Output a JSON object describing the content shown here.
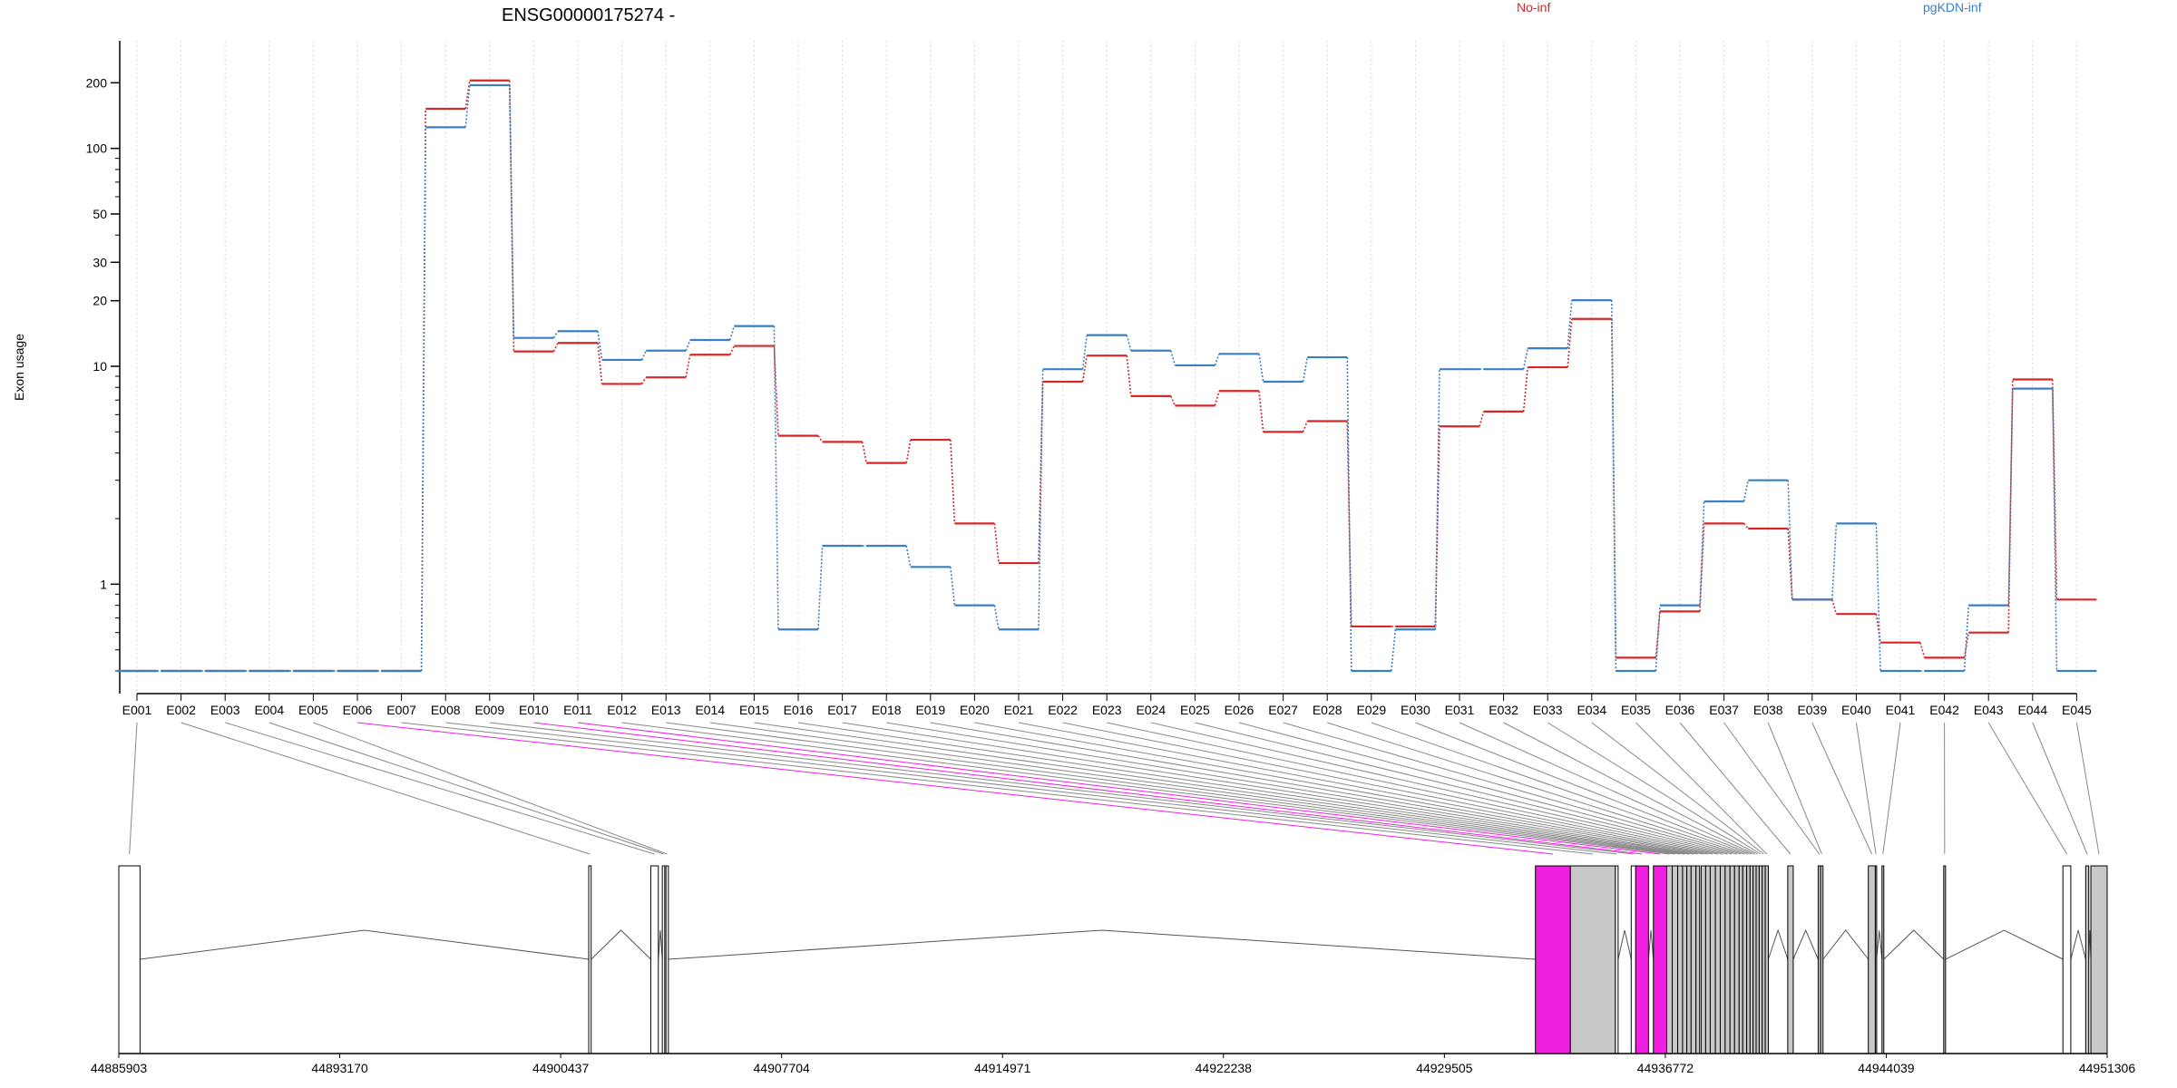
{
  "chart_data": [
    {
      "type": "line",
      "title": "ENSG00000175274 -",
      "ylabel": "Exon usage",
      "yscale": "log",
      "ylim": [
        0.4,
        250
      ],
      "yticks": [
        1,
        10,
        20,
        30,
        50,
        100,
        200
      ],
      "ytick_labels": [
        "1",
        "10",
        "20",
        "30",
        "50",
        "100",
        "200"
      ],
      "grid": "vertical-dotted",
      "legend_placement": "top",
      "categories": [
        "E001",
        "E002",
        "E003",
        "E004",
        "E005",
        "E006",
        "E007",
        "E008",
        "E009",
        "E010",
        "E011",
        "E012",
        "E013",
        "E014",
        "E015",
        "E016",
        "E017",
        "E018",
        "E019",
        "E020",
        "E021",
        "E022",
        "E023",
        "E024",
        "E025",
        "E026",
        "E027",
        "E028",
        "E029",
        "E030",
        "E031",
        "E032",
        "E033",
        "E034",
        "E035",
        "E036",
        "E037",
        "E038",
        "E039",
        "E040",
        "E041",
        "E042",
        "E043",
        "E044",
        "E045"
      ],
      "series": [
        {
          "name": "No-inf",
          "color": "#d62728",
          "values": [
            0.4,
            0.4,
            0.4,
            0.4,
            0.4,
            0.4,
            0.4,
            152,
            205,
            11.7,
            12.8,
            8.3,
            8.9,
            11.3,
            12.4,
            4.8,
            4.5,
            3.6,
            4.6,
            1.9,
            1.25,
            8.5,
            11.2,
            7.3,
            6.6,
            7.7,
            5.0,
            5.6,
            0.64,
            0.64,
            5.3,
            6.2,
            9.9,
            16.5,
            0.46,
            0.75,
            1.9,
            1.8,
            0.85,
            0.73,
            0.54,
            0.46,
            0.6,
            8.7,
            0.85
          ]
        },
        {
          "name": "pgKDN-inf",
          "color": "#3a7fc4",
          "values": [
            0.4,
            0.4,
            0.4,
            0.4,
            0.4,
            0.4,
            0.4,
            125,
            195,
            13.5,
            14.5,
            10.7,
            11.8,
            13.2,
            15.3,
            0.62,
            1.5,
            1.5,
            1.2,
            0.8,
            0.62,
            9.7,
            13.9,
            11.8,
            10.1,
            11.4,
            8.5,
            11.0,
            0.4,
            0.62,
            9.7,
            9.7,
            12.1,
            20.1,
            0.4,
            0.8,
            2.4,
            3.0,
            0.85,
            1.9,
            0.4,
            0.4,
            0.8,
            7.9,
            0.4
          ]
        }
      ]
    },
    {
      "type": "gene-model",
      "x_ticks": [
        "44885903",
        "44893170",
        "44900437",
        "44907704",
        "44914971",
        "44922238",
        "44929505",
        "44936772",
        "44944039",
        "44951306"
      ],
      "x_tick_values": [
        44885903,
        44893170,
        44900437,
        44907704,
        44914971,
        44922238,
        44929505,
        44936772,
        44944039,
        44951306
      ],
      "xlim": [
        44885903,
        44951306
      ],
      "highlight_color": "#f020e0",
      "exon_color": "#c8c8c8",
      "exons": [
        {
          "id": "E001",
          "start": 44885903,
          "end": 44886600,
          "fill": "none"
        },
        {
          "id": "E002",
          "start": 44901360,
          "end": 44901440,
          "fill": "none"
        },
        {
          "id": "E003",
          "start": 44903400,
          "end": 44903650,
          "fill": "none"
        },
        {
          "id": "E004",
          "start": 44903780,
          "end": 44903860,
          "fill": "none"
        },
        {
          "id": "E005",
          "start": 44903900,
          "end": 44903980,
          "fill": "none"
        },
        {
          "id": "E006",
          "start": 44932500,
          "end": 44933650,
          "fill": "highlight"
        },
        {
          "id": "E007",
          "start": 44933650,
          "end": 44935130,
          "fill": "grey"
        },
        {
          "id": "E008",
          "start": 44935130,
          "end": 44935220,
          "fill": "none"
        },
        {
          "id": "E009",
          "start": 44935650,
          "end": 44935800,
          "fill": "none"
        },
        {
          "id": "E010",
          "start": 44935800,
          "end": 44936220,
          "fill": "highlight"
        },
        {
          "id": "E011",
          "start": 44936380,
          "end": 44936820,
          "fill": "highlight"
        },
        {
          "id": "E012",
          "start": 44936820,
          "end": 44937000,
          "fill": "grey"
        },
        {
          "id": "E013",
          "start": 44937000,
          "end": 44937180,
          "fill": "grey"
        },
        {
          "id": "E014",
          "start": 44937180,
          "end": 44937340,
          "fill": "grey"
        },
        {
          "id": "E015",
          "start": 44937340,
          "end": 44937480,
          "fill": "grey"
        },
        {
          "id": "E016",
          "start": 44937480,
          "end": 44937620,
          "fill": "grey"
        },
        {
          "id": "E017",
          "start": 44937620,
          "end": 44937780,
          "fill": "grey"
        },
        {
          "id": "E018",
          "start": 44937780,
          "end": 44937900,
          "fill": "grey"
        },
        {
          "id": "E019",
          "start": 44937950,
          "end": 44938100,
          "fill": "grey"
        },
        {
          "id": "E020",
          "start": 44938100,
          "end": 44938250,
          "fill": "grey"
        },
        {
          "id": "E021",
          "start": 44938250,
          "end": 44938420,
          "fill": "grey"
        },
        {
          "id": "E022",
          "start": 44938420,
          "end": 44938580,
          "fill": "grey"
        },
        {
          "id": "E023",
          "start": 44938580,
          "end": 44938740,
          "fill": "grey"
        },
        {
          "id": "E024",
          "start": 44938740,
          "end": 44938900,
          "fill": "grey"
        },
        {
          "id": "E025",
          "start": 44938900,
          "end": 44939050,
          "fill": "grey"
        },
        {
          "id": "E026",
          "start": 44939050,
          "end": 44939200,
          "fill": "grey"
        },
        {
          "id": "E027",
          "start": 44939200,
          "end": 44939320,
          "fill": "grey"
        },
        {
          "id": "E028",
          "start": 44939320,
          "end": 44939450,
          "fill": "grey"
        },
        {
          "id": "E029",
          "start": 44939450,
          "end": 44939560,
          "fill": "grey"
        },
        {
          "id": "E030",
          "start": 44939560,
          "end": 44939660,
          "fill": "grey"
        },
        {
          "id": "E031",
          "start": 44939660,
          "end": 44939760,
          "fill": "grey"
        },
        {
          "id": "E032",
          "start": 44939760,
          "end": 44939860,
          "fill": "grey"
        },
        {
          "id": "E033",
          "start": 44939860,
          "end": 44939960,
          "fill": "grey"
        },
        {
          "id": "E034",
          "start": 44939960,
          "end": 44940060,
          "fill": "grey"
        },
        {
          "id": "E035",
          "start": 44940060,
          "end": 44940160,
          "fill": "grey"
        },
        {
          "id": "E036",
          "start": 44940800,
          "end": 44940980,
          "fill": "grey"
        },
        {
          "id": "E037",
          "start": 44941800,
          "end": 44941880,
          "fill": "grey"
        },
        {
          "id": "E038",
          "start": 44941880,
          "end": 44941960,
          "fill": "grey"
        },
        {
          "id": "E039",
          "start": 44943450,
          "end": 44943680,
          "fill": "grey"
        },
        {
          "id": "E040",
          "start": 44943680,
          "end": 44943720,
          "fill": "grey"
        },
        {
          "id": "E041",
          "start": 44943900,
          "end": 44943960,
          "fill": "grey"
        },
        {
          "id": "E042",
          "start": 44945930,
          "end": 44945990,
          "fill": "grey"
        },
        {
          "id": "E043",
          "start": 44949850,
          "end": 44950110,
          "fill": "none"
        },
        {
          "id": "E044",
          "start": 44950600,
          "end": 44950700,
          "fill": "grey"
        },
        {
          "id": "E045",
          "start": 44950770,
          "end": 44951306,
          "fill": "grey"
        }
      ]
    }
  ]
}
